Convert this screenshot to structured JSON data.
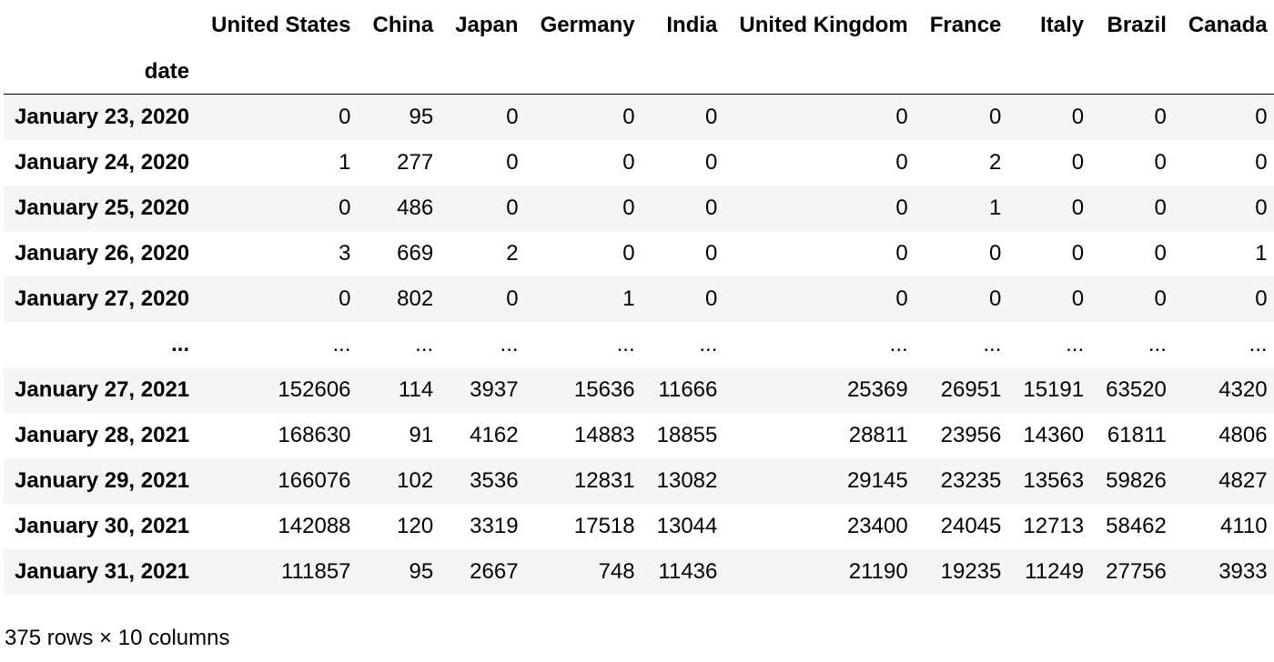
{
  "table": {
    "index_name": "date",
    "columns": [
      "United States",
      "China",
      "Japan",
      "Germany",
      "India",
      "United Kingdom",
      "France",
      "Italy",
      "Brazil",
      "Canada"
    ],
    "rows": [
      {
        "index": "January 23, 2020",
        "values": [
          "0",
          "95",
          "0",
          "0",
          "0",
          "0",
          "0",
          "0",
          "0",
          "0"
        ]
      },
      {
        "index": "January 24, 2020",
        "values": [
          "1",
          "277",
          "0",
          "0",
          "0",
          "0",
          "2",
          "0",
          "0",
          "0"
        ]
      },
      {
        "index": "January 25, 2020",
        "values": [
          "0",
          "486",
          "0",
          "0",
          "0",
          "0",
          "1",
          "0",
          "0",
          "0"
        ]
      },
      {
        "index": "January 26, 2020",
        "values": [
          "3",
          "669",
          "2",
          "0",
          "0",
          "0",
          "0",
          "0",
          "0",
          "1"
        ]
      },
      {
        "index": "January 27, 2020",
        "values": [
          "0",
          "802",
          "0",
          "1",
          "0",
          "0",
          "0",
          "0",
          "0",
          "0"
        ]
      },
      {
        "index": "...",
        "values": [
          "...",
          "...",
          "...",
          "...",
          "...",
          "...",
          "...",
          "...",
          "...",
          "..."
        ]
      },
      {
        "index": "January 27, 2021",
        "values": [
          "152606",
          "114",
          "3937",
          "15636",
          "11666",
          "25369",
          "26951",
          "15191",
          "63520",
          "4320"
        ]
      },
      {
        "index": "January 28, 2021",
        "values": [
          "168630",
          "91",
          "4162",
          "14883",
          "18855",
          "28811",
          "23956",
          "14360",
          "61811",
          "4806"
        ]
      },
      {
        "index": "January 29, 2021",
        "values": [
          "166076",
          "102",
          "3536",
          "12831",
          "13082",
          "29145",
          "23235",
          "13563",
          "59826",
          "4827"
        ]
      },
      {
        "index": "January 30, 2021",
        "values": [
          "142088",
          "120",
          "3319",
          "17518",
          "13044",
          "23400",
          "24045",
          "12713",
          "58462",
          "4110"
        ]
      },
      {
        "index": "January 31, 2021",
        "values": [
          "111857",
          "95",
          "2667",
          "748",
          "11436",
          "21190",
          "19235",
          "11249",
          "27756",
          "3933"
        ]
      }
    ]
  },
  "footer": {
    "shape": "375 rows × 10 columns"
  }
}
